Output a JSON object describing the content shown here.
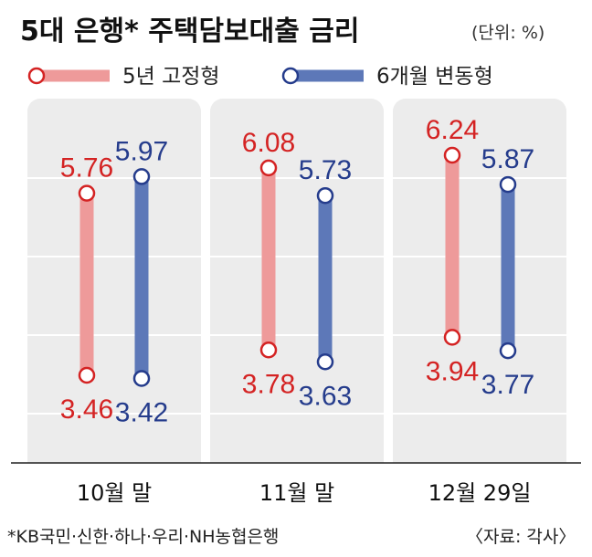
{
  "header": {
    "title": "5대 은행* 주택담보대출 금리",
    "unit": "(단위: %)"
  },
  "colors": {
    "fixed": "#ee9a9a",
    "fixed_text": "#d42323",
    "variable": "#5d78b8",
    "variable_text": "#253c8c",
    "panel": "#ececec",
    "grid": "#ffffff"
  },
  "chart_data": {
    "type": "range",
    "categories": [
      "10월 말",
      "11월 말",
      "12월 29일"
    ],
    "series": [
      {
        "name": "5년 고정형",
        "min": [
          3.46,
          3.78,
          3.94
        ],
        "max": [
          5.76,
          6.08,
          6.24
        ]
      },
      {
        "name": "6개월 변동형",
        "min": [
          3.42,
          3.63,
          3.77
        ],
        "max": [
          5.97,
          5.73,
          5.87
        ]
      }
    ],
    "value_labels": {
      "fixed_min": [
        "3.46",
        "3.78",
        "3.94"
      ],
      "fixed_max": [
        "5.76",
        "6.08",
        "6.24"
      ],
      "variable_min": [
        "3.42",
        "3.63",
        "3.77"
      ],
      "variable_max": [
        "5.97",
        "5.73",
        "5.87"
      ]
    },
    "legend": "top-left",
    "grid": true
  },
  "footer": {
    "note": "*KB국민·신한·하나·우리·NH농협은행",
    "source": "〈자료: 각사〉"
  }
}
